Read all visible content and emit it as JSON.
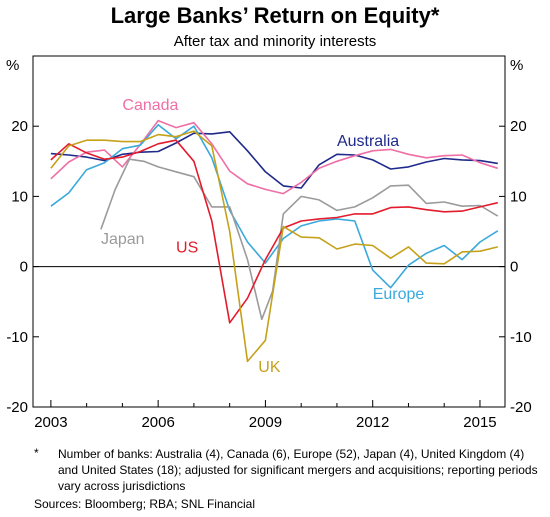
{
  "chart_data": {
    "type": "line",
    "title": "Large Banks’ Return on Equity*",
    "subtitle": "After tax and minority interests",
    "ylabel_left": "%",
    "ylabel_right": "%",
    "xlim": [
      2002.5,
      2015.7
    ],
    "ylim": [
      -20,
      30
    ],
    "yticks": [
      -20,
      -10,
      0,
      10,
      20
    ],
    "ytick_labels": [
      "-20",
      "-10",
      "0",
      "10",
      "20"
    ],
    "xticks": [
      2003,
      2006,
      2009,
      2012,
      2015
    ],
    "xtick_labels": [
      "2003",
      "2006",
      "2009",
      "2012",
      "2015"
    ],
    "grid": false,
    "legend": "none",
    "series": [
      {
        "name": "Australia",
        "color": "#1f2a8a",
        "label_pos": [
          2011.0,
          17.2
        ],
        "points": [
          [
            2003,
            16.1
          ],
          [
            2003.5,
            15.9
          ],
          [
            2004,
            15.6
          ],
          [
            2004.5,
            15.1
          ],
          [
            2005,
            16.0
          ],
          [
            2005.5,
            16.3
          ],
          [
            2006,
            16.4
          ],
          [
            2006.5,
            17.6
          ],
          [
            2007,
            19.0
          ],
          [
            2007.5,
            18.9
          ],
          [
            2008,
            19.2
          ],
          [
            2008.5,
            16.5
          ],
          [
            2009,
            13.5
          ],
          [
            2009.5,
            11.5
          ],
          [
            2010,
            11.2
          ],
          [
            2010.5,
            14.5
          ],
          [
            2011,
            16.0
          ],
          [
            2011.5,
            15.9
          ],
          [
            2012,
            15.2
          ],
          [
            2012.5,
            13.9
          ],
          [
            2013,
            14.2
          ],
          [
            2013.5,
            14.9
          ],
          [
            2014,
            15.4
          ],
          [
            2014.5,
            15.2
          ],
          [
            2015,
            15.1
          ],
          [
            2015.5,
            14.7
          ]
        ]
      },
      {
        "name": "Canada",
        "color": "#ee6fa6",
        "label_pos": [
          2005.0,
          22.3
        ],
        "points": [
          [
            2003,
            12.5
          ],
          [
            2003.5,
            14.9
          ],
          [
            2004,
            16.3
          ],
          [
            2004.5,
            16.6
          ],
          [
            2005,
            14.2
          ],
          [
            2005.5,
            17.4
          ],
          [
            2006,
            20.8
          ],
          [
            2006.5,
            19.8
          ],
          [
            2007,
            20.5
          ],
          [
            2007.5,
            17.5
          ],
          [
            2008,
            13.6
          ],
          [
            2008.5,
            11.8
          ],
          [
            2009,
            11.0
          ],
          [
            2009.5,
            10.4
          ],
          [
            2010,
            12.0
          ],
          [
            2010.5,
            14.0
          ],
          [
            2011,
            15.0
          ],
          [
            2011.5,
            15.8
          ],
          [
            2012,
            16.5
          ],
          [
            2012.5,
            16.7
          ],
          [
            2013,
            16.0
          ],
          [
            2013.5,
            15.5
          ],
          [
            2014,
            15.8
          ],
          [
            2014.5,
            15.9
          ],
          [
            2015,
            14.8
          ],
          [
            2015.5,
            14.0
          ]
        ]
      },
      {
        "name": "Europe",
        "color": "#3aa9dc",
        "label_pos": [
          2012.0,
          -4.6
        ],
        "points": [
          [
            2003,
            8.6
          ],
          [
            2003.5,
            10.5
          ],
          [
            2004,
            13.8
          ],
          [
            2004.5,
            14.8
          ],
          [
            2005,
            16.8
          ],
          [
            2005.5,
            17.3
          ],
          [
            2006,
            20.2
          ],
          [
            2006.5,
            18.2
          ],
          [
            2007,
            20.0
          ],
          [
            2007.5,
            15.5
          ],
          [
            2008,
            8.0
          ],
          [
            2008.5,
            3.5
          ],
          [
            2009,
            0.5
          ],
          [
            2009.5,
            4.0
          ],
          [
            2010,
            5.8
          ],
          [
            2010.5,
            6.5
          ],
          [
            2011,
            6.8
          ],
          [
            2011.5,
            6.5
          ],
          [
            2012,
            -0.5
          ],
          [
            2012.5,
            -3.0
          ],
          [
            2013,
            0.2
          ],
          [
            2013.5,
            1.9
          ],
          [
            2014,
            3.0
          ],
          [
            2014.5,
            1.0
          ],
          [
            2015,
            3.5
          ],
          [
            2015.5,
            5.1
          ]
        ]
      },
      {
        "name": "Japan",
        "color": "#9b9b9b",
        "label_pos": [
          2004.4,
          3.2
        ],
        "points": [
          [
            2004.4,
            5.3
          ],
          [
            2004.8,
            11.0
          ],
          [
            2005.2,
            15.3
          ],
          [
            2005.6,
            15.0
          ],
          [
            2006,
            14.2
          ],
          [
            2006.5,
            13.5
          ],
          [
            2007,
            12.8
          ],
          [
            2007.5,
            8.5
          ],
          [
            2008,
            8.5
          ],
          [
            2008.5,
            1.0
          ],
          [
            2008.9,
            -7.5
          ],
          [
            2009.2,
            -3.5
          ],
          [
            2009.5,
            7.5
          ],
          [
            2010,
            10.0
          ],
          [
            2010.5,
            9.5
          ],
          [
            2011,
            8.0
          ],
          [
            2011.5,
            8.5
          ],
          [
            2012,
            9.8
          ],
          [
            2012.5,
            11.5
          ],
          [
            2013,
            11.6
          ],
          [
            2013.5,
            9.0
          ],
          [
            2014,
            9.2
          ],
          [
            2014.5,
            8.6
          ],
          [
            2015,
            8.7
          ],
          [
            2015.5,
            7.2
          ]
        ]
      },
      {
        "name": "US",
        "color": "#e21c2c",
        "label_pos": [
          2006.5,
          2.0
        ],
        "points": [
          [
            2003,
            15.2
          ],
          [
            2003.5,
            17.5
          ],
          [
            2004,
            16.2
          ],
          [
            2004.5,
            15.3
          ],
          [
            2005,
            15.6
          ],
          [
            2005.5,
            16.4
          ],
          [
            2006,
            17.5
          ],
          [
            2006.5,
            18.0
          ],
          [
            2007,
            15.0
          ],
          [
            2007.5,
            6.5
          ],
          [
            2008,
            -8.0
          ],
          [
            2008.5,
            -4.5
          ],
          [
            2009,
            1.0
          ],
          [
            2009.5,
            5.5
          ],
          [
            2010,
            6.5
          ],
          [
            2010.5,
            6.8
          ],
          [
            2011,
            7.0
          ],
          [
            2011.5,
            7.5
          ],
          [
            2012,
            7.5
          ],
          [
            2012.5,
            8.4
          ],
          [
            2013,
            8.5
          ],
          [
            2013.5,
            8.1
          ],
          [
            2014,
            7.8
          ],
          [
            2014.5,
            7.9
          ],
          [
            2015,
            8.5
          ],
          [
            2015.5,
            9.1
          ]
        ]
      },
      {
        "name": "UK",
        "color": "#c6a11a",
        "label_pos": [
          2008.8,
          -15.0
        ],
        "points": [
          [
            2003,
            14.0
          ],
          [
            2003.5,
            17.2
          ],
          [
            2004,
            18.0
          ],
          [
            2004.5,
            18.0
          ],
          [
            2005,
            17.8
          ],
          [
            2005.5,
            17.8
          ],
          [
            2006,
            18.8
          ],
          [
            2006.5,
            18.5
          ],
          [
            2007,
            19.3
          ],
          [
            2007.5,
            17.2
          ],
          [
            2008,
            5.0
          ],
          [
            2008.5,
            -13.5
          ],
          [
            2009,
            -10.5
          ],
          [
            2009.5,
            5.7
          ],
          [
            2010,
            4.2
          ],
          [
            2010.5,
            4.1
          ],
          [
            2011,
            2.5
          ],
          [
            2011.5,
            3.2
          ],
          [
            2012,
            3.0
          ],
          [
            2012.5,
            1.2
          ],
          [
            2013,
            2.8
          ],
          [
            2013.5,
            0.5
          ],
          [
            2014,
            0.4
          ],
          [
            2014.5,
            2.1
          ],
          [
            2015,
            2.2
          ],
          [
            2015.5,
            2.8
          ]
        ]
      }
    ]
  },
  "footnote": {
    "marker": "*",
    "text": "Number of banks: Australia (4), Canada (6), Europe (52), Japan (4), United Kingdom (4) and United States (18); adjusted for significant mergers and acquisitions; reporting periods vary across jurisdictions"
  },
  "sources": "Sources:  Bloomberg; RBA; SNL Financial"
}
